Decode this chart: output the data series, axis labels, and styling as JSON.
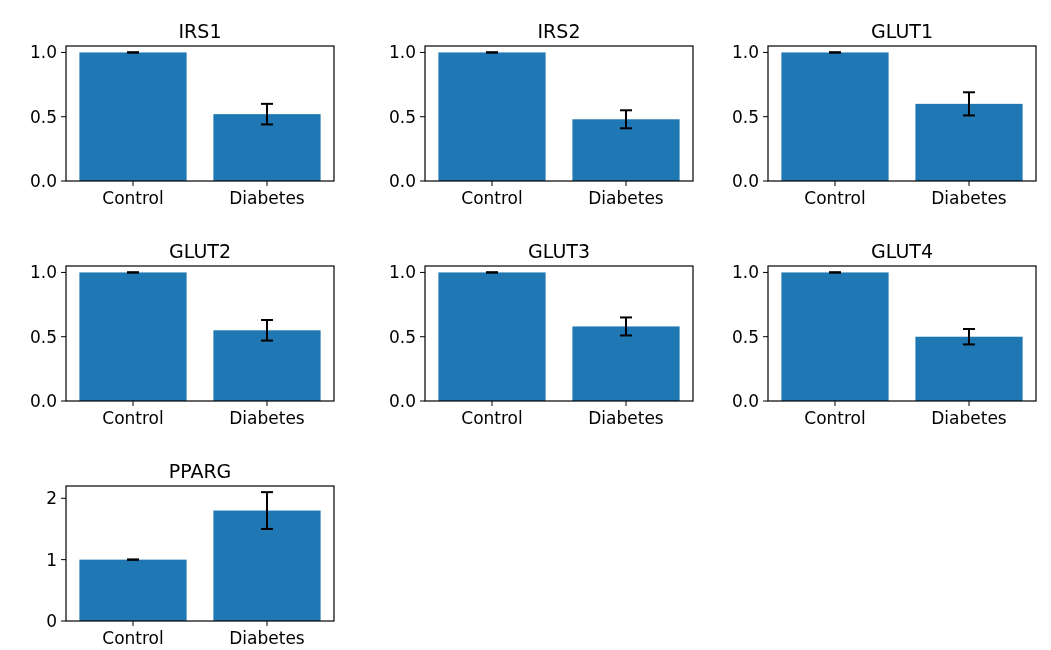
{
  "chart_data": [
    {
      "type": "bar",
      "title": "IRS1",
      "categories": [
        "Control",
        "Diabetes"
      ],
      "values": [
        1.0,
        0.52
      ],
      "errors": [
        0,
        0.08
      ],
      "color": "#1f77b4",
      "ylim": [
        0,
        1.05
      ],
      "yticks": [
        {
          "value": 0,
          "label": "0.0"
        },
        {
          "value": 0.5,
          "label": "0.5"
        },
        {
          "value": 1,
          "label": "1.0"
        }
      ]
    },
    {
      "type": "bar",
      "title": "IRS2",
      "categories": [
        "Control",
        "Diabetes"
      ],
      "values": [
        1.0,
        0.48
      ],
      "errors": [
        0,
        0.07
      ],
      "color": "#1f77b4",
      "ylim": [
        0,
        1.05
      ],
      "yticks": [
        {
          "value": 0,
          "label": "0.0"
        },
        {
          "value": 0.5,
          "label": "0.5"
        },
        {
          "value": 1,
          "label": "1.0"
        }
      ]
    },
    {
      "type": "bar",
      "title": "GLUT1",
      "categories": [
        "Control",
        "Diabetes"
      ],
      "values": [
        1.0,
        0.6
      ],
      "errors": [
        0,
        0.09
      ],
      "color": "#1f77b4",
      "ylim": [
        0,
        1.05
      ],
      "yticks": [
        {
          "value": 0,
          "label": "0.0"
        },
        {
          "value": 0.5,
          "label": "0.5"
        },
        {
          "value": 1,
          "label": "1.0"
        }
      ]
    },
    {
      "type": "bar",
      "title": "GLUT2",
      "categories": [
        "Control",
        "Diabetes"
      ],
      "values": [
        1.0,
        0.55
      ],
      "errors": [
        0,
        0.08
      ],
      "color": "#1f77b4",
      "ylim": [
        0,
        1.05
      ],
      "yticks": [
        {
          "value": 0,
          "label": "0.0"
        },
        {
          "value": 0.5,
          "label": "0.5"
        },
        {
          "value": 1,
          "label": "1.0"
        }
      ]
    },
    {
      "type": "bar",
      "title": "GLUT3",
      "categories": [
        "Control",
        "Diabetes"
      ],
      "values": [
        1.0,
        0.58
      ],
      "errors": [
        0,
        0.07
      ],
      "color": "#1f77b4",
      "ylim": [
        0,
        1.05
      ],
      "yticks": [
        {
          "value": 0,
          "label": "0.0"
        },
        {
          "value": 0.5,
          "label": "0.5"
        },
        {
          "value": 1,
          "label": "1.0"
        }
      ]
    },
    {
      "type": "bar",
      "title": "GLUT4",
      "categories": [
        "Control",
        "Diabetes"
      ],
      "values": [
        1.0,
        0.5
      ],
      "errors": [
        0,
        0.06
      ],
      "color": "#1f77b4",
      "ylim": [
        0,
        1.05
      ],
      "yticks": [
        {
          "value": 0,
          "label": "0.0"
        },
        {
          "value": 0.5,
          "label": "0.5"
        },
        {
          "value": 1,
          "label": "1.0"
        }
      ]
    },
    {
      "type": "bar",
      "title": "PPARG",
      "categories": [
        "Control",
        "Diabetes"
      ],
      "values": [
        1.0,
        1.8
      ],
      "errors": [
        0,
        0.3
      ],
      "color": "#1f77b4",
      "ylim": [
        0,
        2.2
      ],
      "yticks": [
        0,
        1,
        2
      ]
    }
  ]
}
